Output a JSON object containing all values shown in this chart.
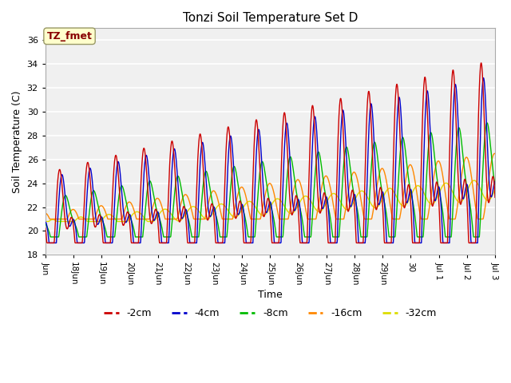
{
  "title": "Tonzi Soil Temperature Set D",
  "xlabel": "Time",
  "ylabel": "Soil Temperature (C)",
  "ylim": [
    18,
    37
  ],
  "yticks": [
    18,
    20,
    22,
    24,
    26,
    28,
    30,
    32,
    34,
    36
  ],
  "line_colors": {
    "-2cm": "#cc0000",
    "-4cm": "#0000cc",
    "-8cm": "#00bb00",
    "-16cm": "#ff8800",
    "-32cm": "#dddd00"
  },
  "legend_labels": [
    "-2cm",
    "-4cm",
    "-8cm",
    "-16cm",
    "-32cm"
  ],
  "annotation_text": "TZ_fmet",
  "annotation_bg": "#ffffcc",
  "annotation_fg": "#880000",
  "fig_bg": "#ffffff",
  "plot_bg": "#f0f0f0",
  "n_points": 1600,
  "x_start": 17.0,
  "x_end": 33.0,
  "xtick_positions": [
    17,
    18,
    19,
    20,
    21,
    22,
    23,
    24,
    25,
    26,
    27,
    28,
    29,
    30,
    31,
    32,
    33
  ],
  "xtick_labels": [
    "Jun",
    "18Jun",
    "19Jun",
    "20Jun",
    "21Jun",
    "22Jun",
    "23Jun",
    "24Jun",
    "25Jun",
    "26Jun",
    "27Jun",
    "28Jun",
    "29Jun",
    "30",
    "Jul 1",
    "Jul 2",
    "Jul 3"
  ]
}
